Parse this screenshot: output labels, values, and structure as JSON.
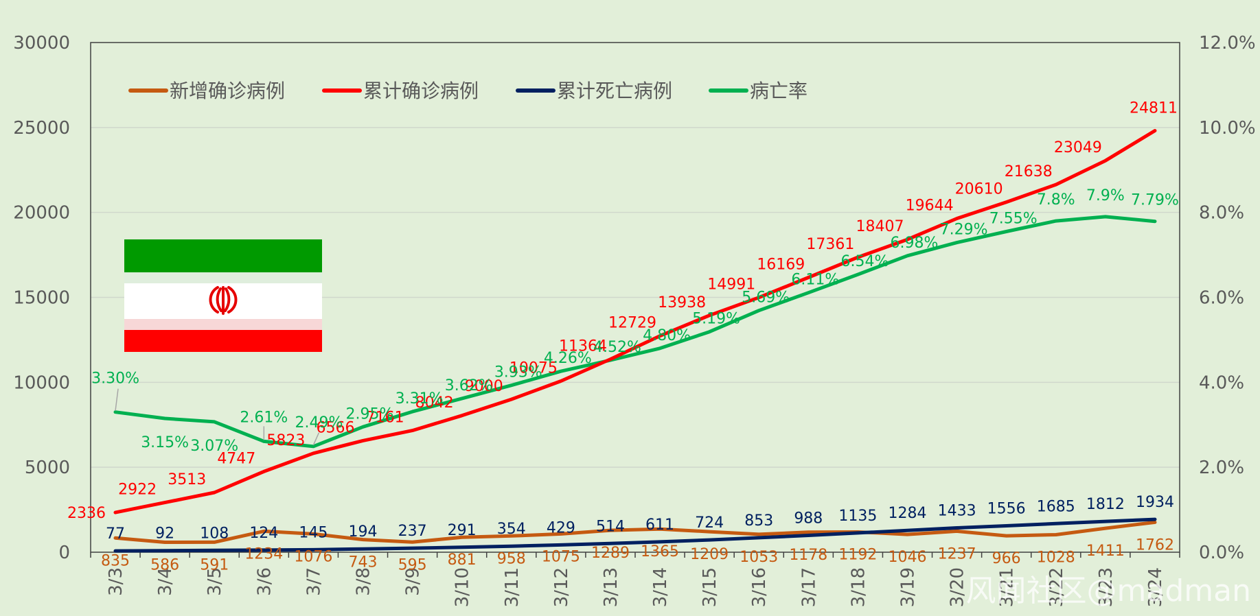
{
  "chart_data": {
    "type": "line",
    "categories": [
      "3/3",
      "3/4",
      "3/5",
      "3/6",
      "3/7",
      "3/8",
      "3/9",
      "3/10",
      "3/11",
      "3/12",
      "3/13",
      "3/14",
      "3/15",
      "3/16",
      "3/17",
      "3/18",
      "3/19",
      "3/20",
      "3/21",
      "3/22",
      "3/23",
      "3/24"
    ],
    "y_left": {
      "range": [
        0,
        30000
      ],
      "ticks": [
        "0",
        "5000",
        "10000",
        "15000",
        "20000",
        "25000",
        "30000"
      ]
    },
    "y_right": {
      "range": [
        0,
        12
      ],
      "ticks": [
        "0.0%",
        "2.0%",
        "4.0%",
        "6.0%",
        "8.0%",
        "10.0%",
        "12.0%"
      ]
    },
    "grid": true,
    "legend_position": "top-left",
    "series": [
      {
        "name": "新增确诊病例",
        "axis": "left",
        "color": "#c55a11",
        "values": [
          835,
          586,
          591,
          1234,
          1076,
          743,
          595,
          881,
          958,
          1075,
          1289,
          1365,
          1209,
          1053,
          1178,
          1192,
          1046,
          1237,
          966,
          1028,
          1411,
          1762
        ],
        "labels": [
          "835",
          "586",
          "591",
          "1234",
          "1076",
          "743",
          "595",
          "881",
          "958",
          "1075",
          "1289",
          "1365",
          "1209",
          "1053",
          "1178",
          "1192",
          "1046",
          "1237",
          "966",
          "1028",
          "1411",
          "1762"
        ]
      },
      {
        "name": "累计确诊病例",
        "axis": "left",
        "color": "#ff0000",
        "values": [
          2336,
          2922,
          3513,
          4747,
          5823,
          6566,
          7161,
          8042,
          9000,
          10075,
          11364,
          12729,
          13938,
          14991,
          16169,
          17361,
          18407,
          19644,
          20610,
          21638,
          23049,
          24811
        ],
        "labels": [
          "2336",
          "2922",
          "3513",
          "4747",
          "5823",
          "6566",
          "7161",
          "8042",
          "9000",
          "10075",
          "11364",
          "12729",
          "13938",
          "14991",
          "16169",
          "17361",
          "18407",
          "19644",
          "20610",
          "21638",
          "23049",
          "24811"
        ]
      },
      {
        "name": "累计死亡病例",
        "axis": "left",
        "color": "#002060",
        "values": [
          77,
          92,
          108,
          124,
          145,
          194,
          237,
          291,
          354,
          429,
          514,
          611,
          724,
          853,
          988,
          1135,
          1284,
          1433,
          1556,
          1685,
          1812,
          1934
        ],
        "labels": [
          "77",
          "92",
          "108",
          "124",
          "145",
          "194",
          "237",
          "291",
          "354",
          "429",
          "514",
          "611",
          "724",
          "853",
          "988",
          "1135",
          "1284",
          "1433",
          "1556",
          "1685",
          "1812",
          "1934"
        ]
      },
      {
        "name": "病亡率",
        "axis": "right",
        "color": "#00b050",
        "values": [
          3.3,
          3.15,
          3.07,
          2.61,
          2.49,
          2.95,
          3.31,
          3.62,
          3.93,
          4.26,
          4.52,
          4.8,
          5.19,
          5.69,
          6.11,
          6.54,
          6.98,
          7.29,
          7.55,
          7.8,
          7.9,
          7.79
        ],
        "labels": [
          "3.30%",
          "3.15%",
          "3.07%",
          "2.61%",
          "2.49%",
          "2.95%",
          "3.31%",
          "3.62%",
          "3.93%",
          "4.26%",
          "4.52%",
          "4.80%",
          "5.19%",
          "5.69%",
          "6.11%",
          "6.54%",
          "6.98%",
          "7.29%",
          "7.55%",
          "7.8%",
          "7.9%",
          "7.79%"
        ]
      }
    ]
  },
  "flag": {
    "name": "iran-flag",
    "colors": {
      "green": "#239f40",
      "white": "#ffffff",
      "red": "#da0000"
    }
  },
  "watermark": "风闻社区@madman"
}
